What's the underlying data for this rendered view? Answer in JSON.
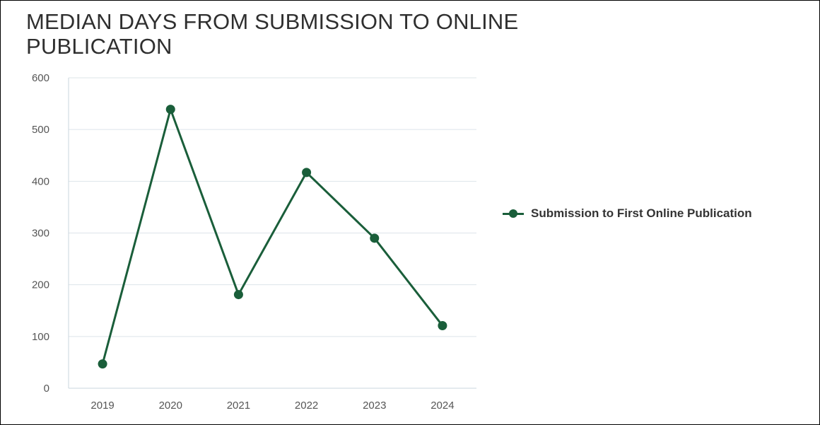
{
  "chart_data": {
    "type": "line",
    "title": "MEDIAN DAYS FROM SUBMISSION TO ONLINE PUBLICATION",
    "xlabel": "",
    "ylabel": "",
    "categories": [
      "2019",
      "2020",
      "2021",
      "2022",
      "2023",
      "2024"
    ],
    "series": [
      {
        "name": "Submission to First Online Publication",
        "values": [
          47,
          539,
          181,
          417,
          290,
          121
        ],
        "color": "#1a5e3a"
      }
    ],
    "ylim": [
      0,
      600
    ],
    "yticks": [
      "0",
      "100",
      "200",
      "300",
      "400",
      "500",
      "600"
    ],
    "grid": true,
    "legend_position": "right",
    "grid_color": "#dde4ea",
    "axis_color": "#c9d4dc"
  }
}
